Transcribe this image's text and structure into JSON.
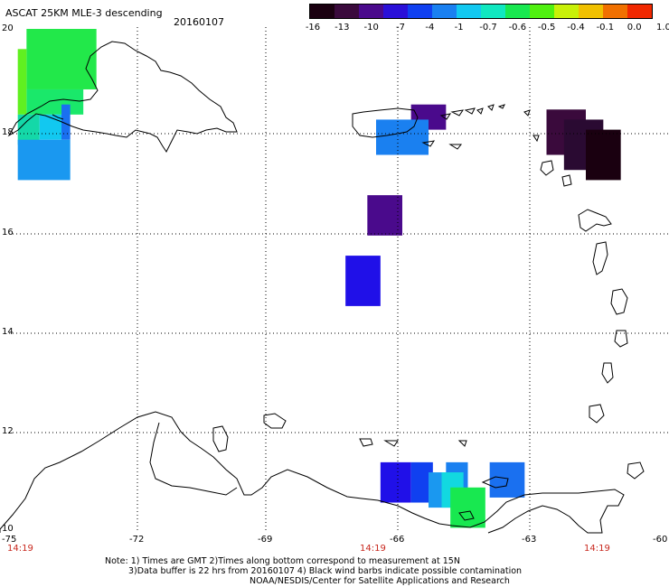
{
  "header": {
    "title": "ASCAT 25KM MLE-3 descending",
    "date": "20160107"
  },
  "colorbar": {
    "labels": [
      "-16",
      "-13",
      "-10",
      "-7",
      "-4",
      "-1",
      "-0.7",
      "-0.6",
      "-0.5",
      "-0.4",
      "-0.1",
      "0.0",
      "1.0"
    ],
    "colors": [
      "#1a0010",
      "#3a0a3c",
      "#4a0a8c",
      "#2a10d8",
      "#1040f0",
      "#1a80f0",
      "#12c8f0",
      "#10e8c0",
      "#18e850",
      "#50f010",
      "#c8f008",
      "#f0c000",
      "#f07000",
      "#f02800"
    ]
  },
  "axes": {
    "lat_labels": [
      "20",
      "18",
      "16",
      "14",
      "12",
      "10"
    ],
    "lon_labels": [
      "-75",
      "-72",
      "-69",
      "-66",
      "-63",
      "-60"
    ],
    "times": [
      "14:19",
      "14:19",
      "14:19"
    ]
  },
  "notes": {
    "line1": "Note: 1) Times are GMT 2)Times along bottom correspond to measurement at 15N",
    "line2": "3)Data buffer is 22 hrs from 20160107 4) Black wind barbs indicate possible contamination",
    "line3": "NOAA/NESDIS/Center for Satellite Applications and Research"
  },
  "chart_data": {
    "type": "heatmap",
    "title": "ASCAT 25KM MLE-3 descending",
    "xlim": [
      -75,
      -60
    ],
    "ylim": [
      10,
      20
    ],
    "grid": true,
    "cells": [
      {
        "lon0": -74.6,
        "lon1": -73.0,
        "lat0": 18.8,
        "lat1": 20.0,
        "color": "#22e84a",
        "value": "-0.5"
      },
      {
        "lon0": -74.6,
        "lon1": -73.3,
        "lat0": 18.3,
        "lat1": 18.8,
        "color": "#1ae86a",
        "value": "-0.5"
      },
      {
        "lon0": -74.8,
        "lon1": -74.6,
        "lat0": 18.3,
        "lat1": 19.6,
        "color": "#60f020",
        "value": "-0.4"
      },
      {
        "lon0": -74.8,
        "lon1": -74.3,
        "lat0": 17.7,
        "lat1": 18.3,
        "color": "#14d8a8",
        "value": "-0.7"
      },
      {
        "lon0": -74.3,
        "lon1": -73.8,
        "lat0": 17.8,
        "lat1": 18.3,
        "color": "#12c8f0",
        "value": "-0.7"
      },
      {
        "lon0": -73.8,
        "lon1": -73.6,
        "lat0": 17.8,
        "lat1": 18.5,
        "color": "#1a70f0",
        "value": "-4"
      },
      {
        "lon0": -74.8,
        "lon1": -73.6,
        "lat0": 17.0,
        "lat1": 17.8,
        "color": "#1a98f0",
        "value": "-1"
      },
      {
        "lon0": -65.8,
        "lon1": -65.0,
        "lat0": 18.0,
        "lat1": 18.5,
        "color": "#4a0a8c",
        "value": "-10"
      },
      {
        "lon0": -66.6,
        "lon1": -65.4,
        "lat0": 17.5,
        "lat1": 18.2,
        "color": "#1a80f0",
        "value": "-4"
      },
      {
        "lon0": -66.8,
        "lon1": -66.0,
        "lat0": 15.9,
        "lat1": 16.7,
        "color": "#4a0a8c",
        "value": "-10"
      },
      {
        "lon0": -67.3,
        "lon1": -66.5,
        "lat0": 14.5,
        "lat1": 15.5,
        "color": "#2010e8",
        "value": "-7"
      },
      {
        "lon0": -62.7,
        "lon1": -61.8,
        "lat0": 17.5,
        "lat1": 18.4,
        "color": "#3a0a3c",
        "value": "-13"
      },
      {
        "lon0": -62.3,
        "lon1": -61.4,
        "lat0": 17.2,
        "lat1": 18.2,
        "color": "#2a0a32",
        "value": "-13"
      },
      {
        "lon0": -61.8,
        "lon1": -61.0,
        "lat0": 17.0,
        "lat1": 18.0,
        "color": "#1a0010",
        "value": "-16"
      },
      {
        "lon0": -66.5,
        "lon1": -65.8,
        "lat0": 10.6,
        "lat1": 11.4,
        "color": "#2010e8",
        "value": "-7"
      },
      {
        "lon0": -65.8,
        "lon1": -65.3,
        "lat0": 10.6,
        "lat1": 11.4,
        "color": "#1040f0",
        "value": "-7"
      },
      {
        "lon0": -65.4,
        "lon1": -65.0,
        "lat0": 10.5,
        "lat1": 11.2,
        "color": "#1a98f0",
        "value": "-1"
      },
      {
        "lon0": -65.0,
        "lon1": -64.5,
        "lat0": 10.5,
        "lat1": 11.4,
        "color": "#1a80f0",
        "value": "-4"
      },
      {
        "lon0": -65.1,
        "lon1": -64.6,
        "lat0": 10.5,
        "lat1": 11.2,
        "color": "#12d8e0",
        "value": "-0.7"
      },
      {
        "lon0": -64.9,
        "lon1": -64.1,
        "lat0": 10.1,
        "lat1": 10.9,
        "color": "#18e850",
        "value": "-0.5"
      },
      {
        "lon0": -64.0,
        "lon1": -63.2,
        "lat0": 10.7,
        "lat1": 11.4,
        "color": "#1a70f0",
        "value": "-4"
      }
    ]
  }
}
